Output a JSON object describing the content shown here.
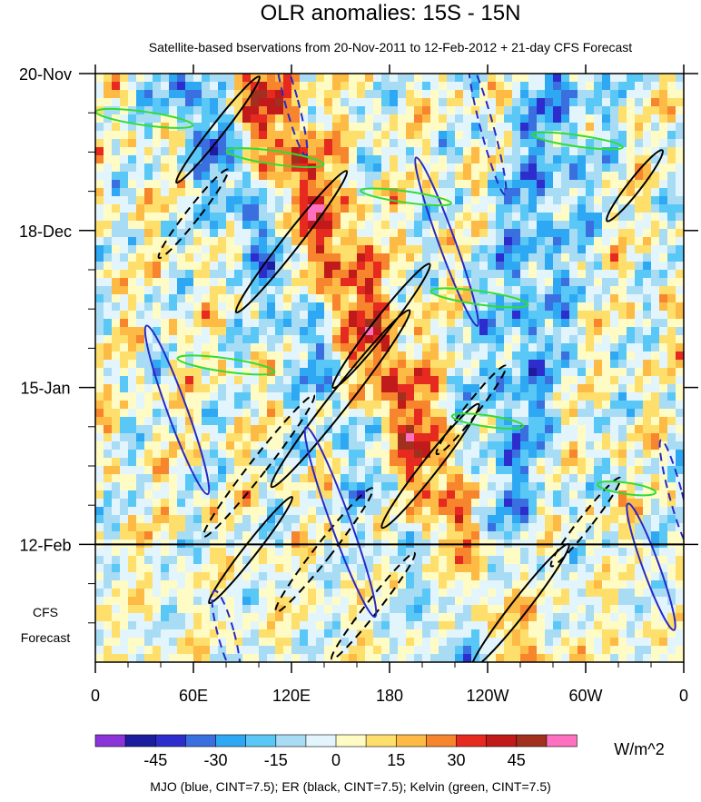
{
  "chart_data": {
    "type": "heatmap",
    "title": "OLR anomalies: 15S - 15N",
    "subtitle": "Satellite-based bservations from 20-Nov-2011 to 12-Feb-2012 + 21-day CFS Forecast",
    "x_ticks": [
      "0",
      "60E",
      "120E",
      "180",
      "120W",
      "60W",
      "0"
    ],
    "x_tick_lon": [
      0,
      60,
      120,
      180,
      240,
      300,
      360
    ],
    "xlim": [
      0,
      360
    ],
    "y_ticks": [
      "20-Nov",
      "18-Dec",
      "15-Jan",
      "12-Feb"
    ],
    "y_tick_day": [
      0,
      28,
      56,
      84
    ],
    "ylim_days": [
      0,
      105
    ],
    "forecast_start_day": 84,
    "forecast_label": [
      "CFS",
      "Forecast"
    ],
    "colorbar": {
      "levels": [
        -52.5,
        -45,
        -37.5,
        -30,
        -22.5,
        -15,
        -7.5,
        0,
        7.5,
        15,
        22.5,
        30,
        37.5,
        45,
        52.5
      ],
      "labels": [
        "-45",
        "-30",
        "-15",
        "0",
        "15",
        "30",
        "45"
      ],
      "label_values": [
        -45,
        -30,
        -15,
        0,
        15,
        30,
        45
      ],
      "colors": [
        "#8a34d9",
        "#1c1c9e",
        "#2d2dce",
        "#3a6fe0",
        "#2fa8f3",
        "#59c8f7",
        "#a8dcf5",
        "#e3f5fc",
        "#fffbc4",
        "#fedf6b",
        "#fdba44",
        "#f7852e",
        "#e62a20",
        "#c11a1a",
        "#a1301e",
        "#ff70c0"
      ],
      "units": "W/m^2"
    },
    "contours": {
      "mjo_color": "#2828c8",
      "er_color": "#000000",
      "kelvin_color": "#32dc32"
    },
    "footnote": "MJO (blue, CINT=7.5); ER (black, CINT=7.5); Kelvin (green, CINT=7.5)"
  }
}
